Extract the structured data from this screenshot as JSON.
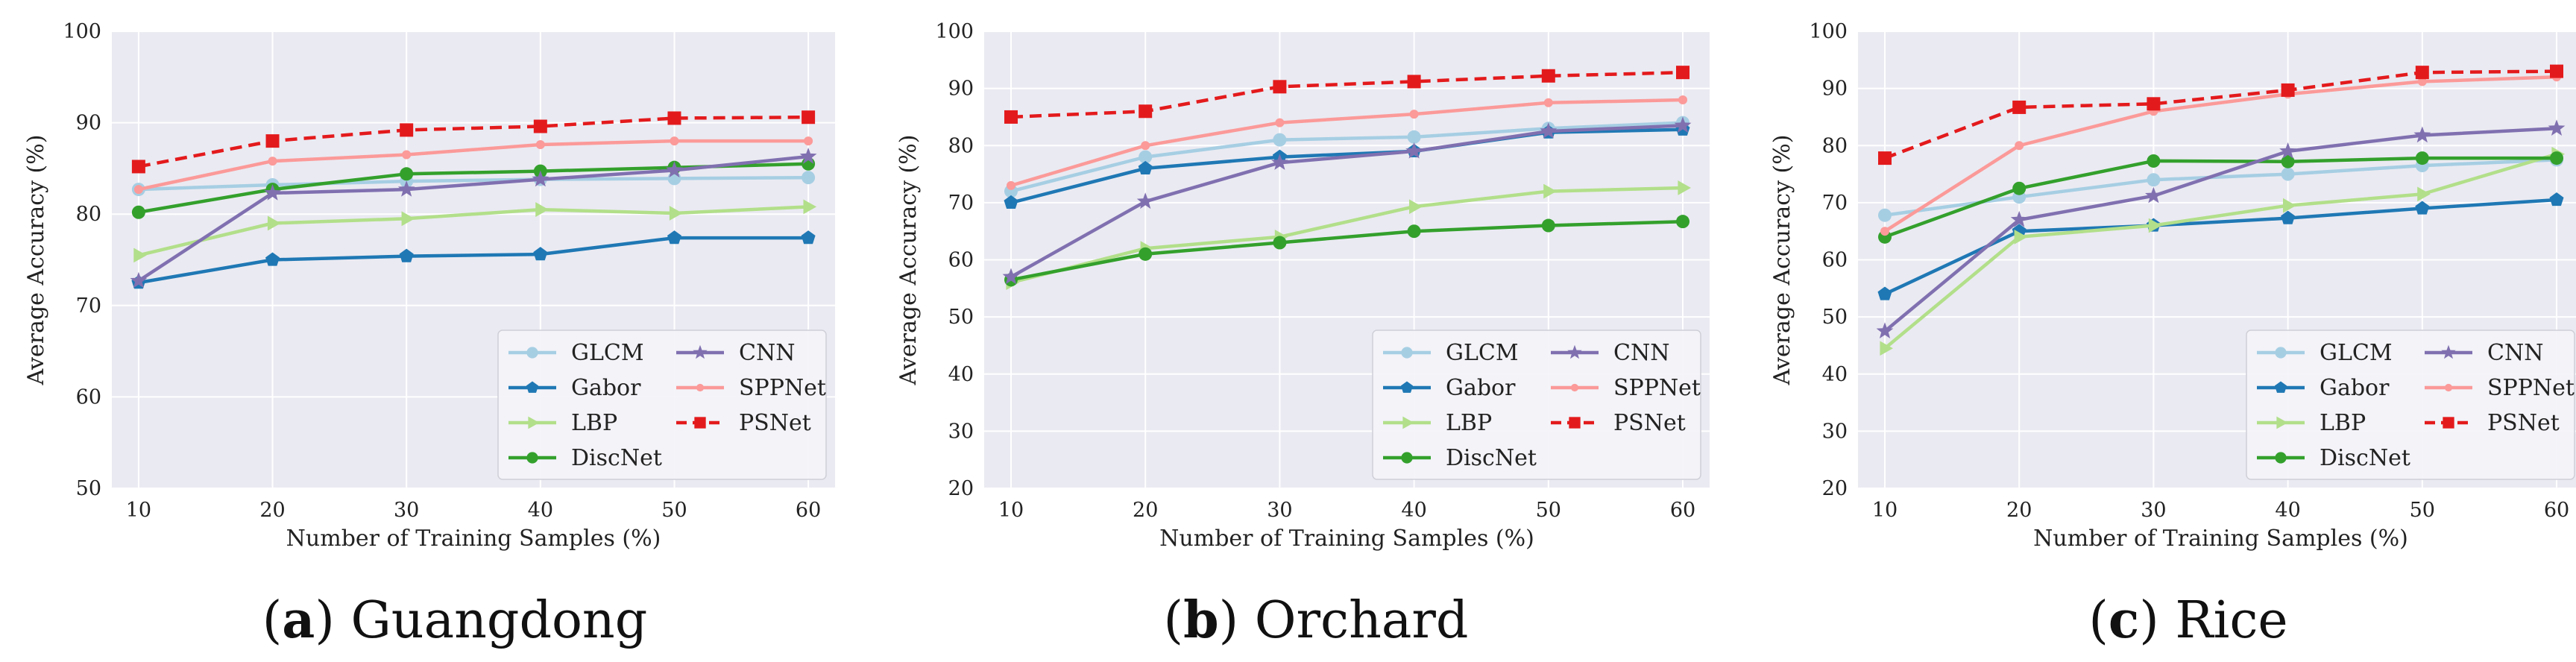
{
  "figure": {
    "colors": {
      "plot_background": "#eaeaf2",
      "grid": "#ffffff",
      "GLCM": "#a6cee3",
      "Gabor": "#1f78b4",
      "LBP": "#b2df8a",
      "DiscNet": "#33a02c",
      "CNN": "#8070b0",
      "SPPNet": "#fb9a99",
      "PSNet": "#e31a1c"
    }
  },
  "chart_data": [
    {
      "type": "line",
      "caption": {
        "letter": "a",
        "title": "Guangdong"
      },
      "xlabel": "Number of Training Samples (%)",
      "ylabel": "Average Accuracy (%)",
      "x": [
        10,
        20,
        30,
        40,
        50,
        60
      ],
      "xticks": [
        "10",
        "20",
        "30",
        "40",
        "50",
        "60"
      ],
      "ylim": [
        50,
        100
      ],
      "yticks": [
        "50",
        "60",
        "70",
        "80",
        "90",
        "100"
      ],
      "grid": true,
      "legend_position": "lower-right",
      "series": [
        {
          "name": "GLCM",
          "marker": "circle",
          "dashed": false,
          "values": [
            82.7,
            83.2,
            83.6,
            83.8,
            83.9,
            84.0
          ]
        },
        {
          "name": "Gabor",
          "marker": "pentagon",
          "dashed": false,
          "values": [
            72.5,
            75.0,
            75.4,
            75.6,
            77.4,
            77.4
          ]
        },
        {
          "name": "LBP",
          "marker": "triangle-right",
          "dashed": false,
          "values": [
            75.5,
            79.0,
            79.5,
            80.5,
            80.1,
            80.8
          ]
        },
        {
          "name": "DiscNet",
          "marker": "circle",
          "dashed": false,
          "values": [
            80.2,
            82.7,
            84.4,
            84.7,
            85.1,
            85.5
          ]
        },
        {
          "name": "CNN",
          "marker": "star",
          "dashed": false,
          "values": [
            72.7,
            82.3,
            82.7,
            83.8,
            84.8,
            86.3
          ]
        },
        {
          "name": "SPPNet",
          "marker": "dot",
          "dashed": false,
          "values": [
            82.7,
            85.8,
            86.5,
            87.6,
            88.0,
            88.0
          ]
        },
        {
          "name": "PSNet",
          "marker": "square",
          "dashed": true,
          "values": [
            85.2,
            88.0,
            89.2,
            89.6,
            90.5,
            90.6
          ]
        }
      ]
    },
    {
      "type": "line",
      "caption": {
        "letter": "b",
        "title": "Orchard"
      },
      "xlabel": "Number of Training Samples (%)",
      "ylabel": "Average Accuracy (%)",
      "x": [
        10,
        20,
        30,
        40,
        50,
        60
      ],
      "xticks": [
        "10",
        "20",
        "30",
        "40",
        "50",
        "60"
      ],
      "ylim": [
        20,
        100
      ],
      "yticks": [
        "20",
        "30",
        "40",
        "50",
        "60",
        "70",
        "80",
        "90",
        "100"
      ],
      "grid": true,
      "legend_position": "lower-right",
      "series": [
        {
          "name": "GLCM",
          "marker": "circle",
          "dashed": false,
          "values": [
            72.0,
            78.0,
            81.0,
            81.5,
            83.0,
            84.0
          ]
        },
        {
          "name": "Gabor",
          "marker": "pentagon",
          "dashed": false,
          "values": [
            70.0,
            76.0,
            78.0,
            79.0,
            82.3,
            82.8
          ]
        },
        {
          "name": "LBP",
          "marker": "triangle-right",
          "dashed": false,
          "values": [
            56.0,
            62.0,
            64.0,
            69.3,
            72.0,
            72.6
          ]
        },
        {
          "name": "DiscNet",
          "marker": "circle",
          "dashed": false,
          "values": [
            56.5,
            61.0,
            63.0,
            65.0,
            66.0,
            66.7
          ]
        },
        {
          "name": "CNN",
          "marker": "star",
          "dashed": false,
          "values": [
            57.0,
            70.2,
            77.0,
            79.0,
            82.5,
            83.5
          ]
        },
        {
          "name": "SPPNet",
          "marker": "dot",
          "dashed": false,
          "values": [
            73.0,
            80.0,
            84.0,
            85.5,
            87.5,
            88.0
          ]
        },
        {
          "name": "PSNet",
          "marker": "square",
          "dashed": true,
          "values": [
            85.0,
            86.0,
            90.3,
            91.2,
            92.2,
            92.8
          ]
        }
      ]
    },
    {
      "type": "line",
      "caption": {
        "letter": "c",
        "title": "Rice"
      },
      "xlabel": "Number of Training Samples (%)",
      "ylabel": "Average Accuracy (%)",
      "x": [
        10,
        20,
        30,
        40,
        50,
        60
      ],
      "xticks": [
        "10",
        "20",
        "30",
        "40",
        "50",
        "60"
      ],
      "ylim": [
        20,
        100
      ],
      "yticks": [
        "20",
        "30",
        "40",
        "50",
        "60",
        "70",
        "80",
        "90",
        "100"
      ],
      "grid": true,
      "legend_position": "lower-right",
      "series": [
        {
          "name": "GLCM",
          "marker": "circle",
          "dashed": false,
          "values": [
            67.8,
            71.0,
            74.0,
            75.0,
            76.5,
            77.5
          ]
        },
        {
          "name": "Gabor",
          "marker": "pentagon",
          "dashed": false,
          "values": [
            54.0,
            65.0,
            66.0,
            67.3,
            69.0,
            70.5
          ]
        },
        {
          "name": "LBP",
          "marker": "triangle-right",
          "dashed": false,
          "values": [
            44.5,
            64.0,
            66.0,
            69.5,
            71.5,
            78.5
          ]
        },
        {
          "name": "DiscNet",
          "marker": "circle",
          "dashed": false,
          "values": [
            64.0,
            72.5,
            77.3,
            77.2,
            77.8,
            77.8
          ]
        },
        {
          "name": "CNN",
          "marker": "star",
          "dashed": false,
          "values": [
            47.5,
            67.0,
            71.2,
            79.0,
            81.8,
            83.0
          ]
        },
        {
          "name": "SPPNet",
          "marker": "dot",
          "dashed": false,
          "values": [
            65.0,
            80.0,
            86.0,
            89.0,
            91.2,
            92.0
          ]
        },
        {
          "name": "PSNet",
          "marker": "square",
          "dashed": true,
          "values": [
            77.8,
            86.7,
            87.3,
            89.7,
            92.8,
            93.0
          ]
        }
      ]
    }
  ]
}
